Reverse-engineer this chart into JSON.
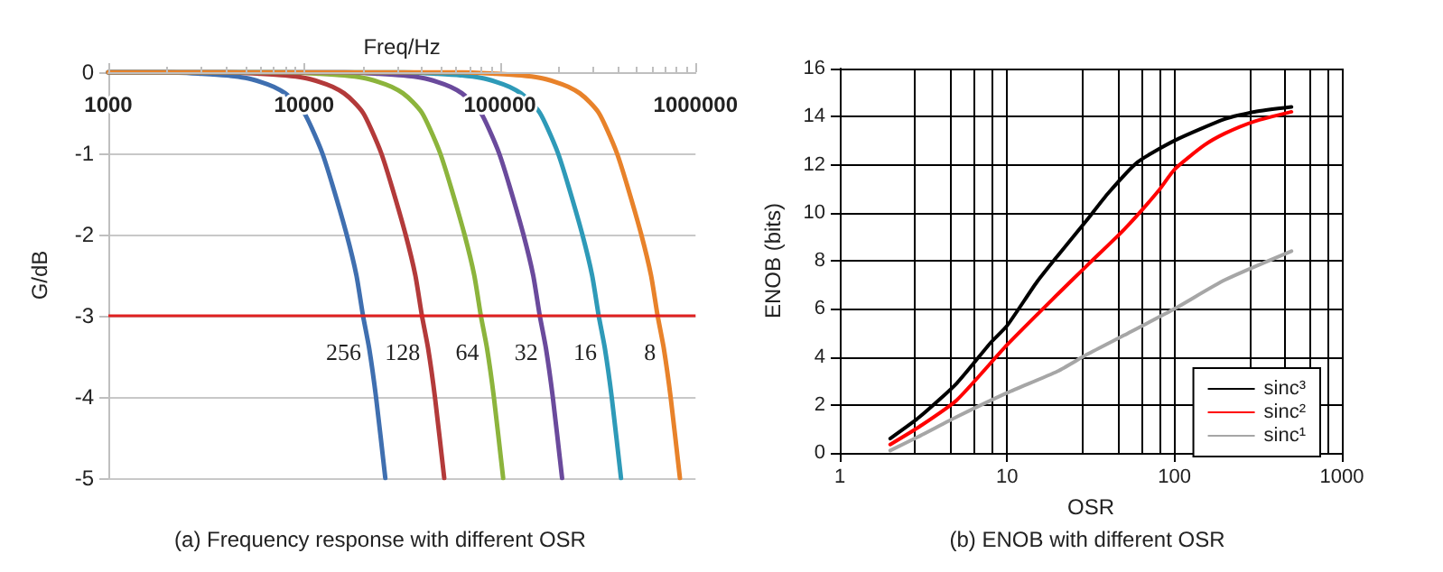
{
  "chart_data": [
    {
      "type": "line",
      "xlabel": "Freq/Hz",
      "ylabel": "G/dB",
      "log": "x",
      "xlim": [
        1000,
        1000000
      ],
      "xticks": [
        1000,
        10000,
        100000,
        1000000
      ],
      "ylim": [
        -5,
        0
      ],
      "yticks": [
        -5,
        -4,
        -3,
        -2,
        -1,
        0
      ],
      "grid": "y",
      "legend": false,
      "marker": "none",
      "line_style": "solid",
      "series": [
        {
          "name": "256",
          "color": "#3f6fb0",
          "x": [
            1000,
            2000,
            3000,
            4000,
            5000,
            6000,
            7000,
            8000,
            9000,
            10000,
            11000,
            12400,
            14000,
            16500,
            18500,
            20000,
            21500,
            23300,
            26000
          ],
          "values": [
            0,
            0,
            -0.02,
            -0.04,
            -0.07,
            -0.12,
            -0.18,
            -0.26,
            -0.37,
            -0.5,
            -0.7,
            -1,
            -1.4,
            -2,
            -2.5,
            -3,
            -3.4,
            -4,
            -5
          ]
        },
        {
          "name": "128",
          "color": "#b33a3a",
          "x": [
            1000,
            2000,
            4000,
            6000,
            8000,
            10000,
            12000,
            14000,
            16000,
            18000,
            20000,
            22000,
            24800,
            28000,
            33000,
            37000,
            40000,
            43000,
            46600,
            52000
          ],
          "values": [
            0,
            0,
            0,
            -0.02,
            -0.04,
            -0.07,
            -0.12,
            -0.18,
            -0.26,
            -0.37,
            -0.5,
            -0.7,
            -1,
            -1.4,
            -2,
            -2.5,
            -3,
            -3.4,
            -4,
            -5
          ]
        },
        {
          "name": "64",
          "color": "#8cb43c",
          "x": [
            1000,
            4000,
            8000,
            12000,
            16000,
            20000,
            24000,
            28000,
            32000,
            36000,
            40000,
            44000,
            49600,
            56000,
            66000,
            74000,
            80000,
            86000,
            93200,
            104000
          ],
          "values": [
            0,
            0,
            0,
            -0.02,
            -0.04,
            -0.07,
            -0.12,
            -0.18,
            -0.26,
            -0.37,
            -0.5,
            -0.7,
            -1,
            -1.4,
            -2,
            -2.5,
            -3,
            -3.4,
            -4,
            -5
          ]
        },
        {
          "name": "32",
          "color": "#6a4a9c",
          "x": [
            1000,
            8000,
            16000,
            24000,
            32000,
            40000,
            48000,
            56000,
            64000,
            72000,
            80000,
            88000,
            99200,
            112000,
            132000,
            148000,
            160000,
            172000,
            186400,
            208000
          ],
          "values": [
            0,
            0,
            0,
            -0.02,
            -0.04,
            -0.07,
            -0.12,
            -0.18,
            -0.26,
            -0.37,
            -0.5,
            -0.7,
            -1,
            -1.4,
            -2,
            -2.5,
            -3,
            -3.4,
            -4,
            -5
          ]
        },
        {
          "name": "16",
          "color": "#2e9ab8",
          "x": [
            1000,
            16000,
            32000,
            48000,
            64000,
            80000,
            96000,
            112000,
            128000,
            144000,
            160000,
            176000,
            198400,
            224000,
            264000,
            296000,
            320000,
            344000,
            372800,
            416000
          ],
          "values": [
            0,
            0,
            0,
            -0.02,
            -0.04,
            -0.07,
            -0.12,
            -0.18,
            -0.26,
            -0.37,
            -0.5,
            -0.7,
            -1,
            -1.4,
            -2,
            -2.5,
            -3,
            -3.4,
            -4,
            -5
          ]
        },
        {
          "name": "8",
          "color": "#e8822a",
          "x": [
            1000,
            32000,
            64000,
            96000,
            128000,
            160000,
            192000,
            224000,
            256000,
            288000,
            320000,
            352000,
            396800,
            448000,
            528000,
            592000,
            640000,
            688000,
            745600,
            832000
          ],
          "values": [
            0,
            0,
            0,
            -0.02,
            -0.04,
            -0.07,
            -0.12,
            -0.18,
            -0.26,
            -0.37,
            -0.5,
            -0.7,
            -1,
            -1.4,
            -2,
            -2.5,
            -3,
            -3.4,
            -4,
            -5
          ]
        }
      ],
      "ref_lines": [
        {
          "axis": "y",
          "value": -3,
          "color": "#e02020"
        }
      ],
      "annotations": [
        "(a) Frequency response with different OSR"
      ]
    },
    {
      "type": "line",
      "xlabel": "OSR",
      "ylabel": "ENOB (bits)",
      "log": "x",
      "xlim": [
        1,
        1000
      ],
      "xticks": [
        1,
        10,
        100,
        1000
      ],
      "ylim": [
        0,
        16
      ],
      "yticks": [
        0,
        2,
        4,
        6,
        8,
        10,
        12,
        14,
        16
      ],
      "grid": true,
      "legend": "bottom right",
      "marker": "none",
      "line_style": "solid",
      "series": [
        {
          "name": "sinc³",
          "color": "#000000",
          "x": [
            2,
            3,
            5,
            8,
            10,
            15,
            20,
            30,
            40,
            60,
            100,
            200,
            300,
            500
          ],
          "values": [
            0.6,
            1.5,
            2.9,
            4.6,
            5.3,
            7.1,
            8.2,
            9.7,
            10.8,
            12.1,
            13.0,
            13.9,
            14.2,
            14.4
          ]
        },
        {
          "name": "sinc²",
          "color": "#ff0000",
          "x": [
            2,
            3,
            5,
            10,
            20,
            30,
            50,
            80,
            100,
            150,
            200,
            300,
            500
          ],
          "values": [
            0.35,
            1.1,
            2.2,
            4.5,
            6.6,
            7.8,
            9.3,
            10.9,
            11.8,
            12.8,
            13.3,
            13.8,
            14.2
          ]
        },
        {
          "name": "sinc¹",
          "color": "#a6a6a6",
          "x": [
            2,
            3,
            5,
            10,
            20,
            30,
            50,
            100,
            200,
            500
          ],
          "values": [
            0.1,
            0.7,
            1.5,
            2.5,
            3.4,
            4.1,
            4.9,
            6.0,
            7.2,
            8.4
          ]
        }
      ],
      "annotations": [
        "(b) ENOB with different OSR"
      ]
    }
  ]
}
